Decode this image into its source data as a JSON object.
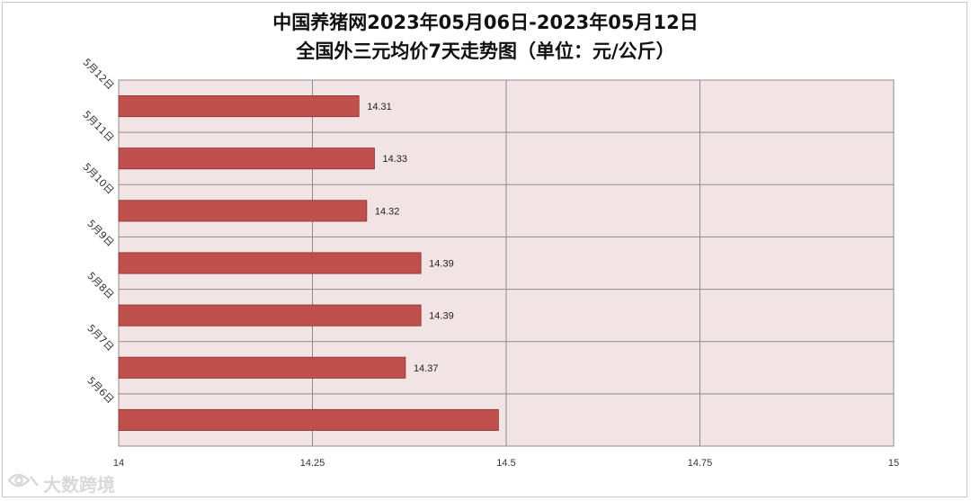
{
  "chart_data": {
    "type": "bar",
    "orientation": "horizontal",
    "title": "中国养猪网2023年05月06日-2023年05月12日",
    "subtitle": "全国外三元均价7天走势图（单位：元/公斤）",
    "categories": [
      "5月12日",
      "5月11日",
      "5月10日",
      "5月9日",
      "5月8日",
      "5月7日",
      "5月6日"
    ],
    "values": [
      14.31,
      14.33,
      14.32,
      14.39,
      14.39,
      14.37,
      14.49
    ],
    "data_labels": [
      "14.31",
      "14.33",
      "14.32",
      "14.39",
      "14.39",
      "14.37",
      ""
    ],
    "xlim": [
      14,
      15
    ],
    "x_ticks": [
      "14",
      "14.25",
      "14.5",
      "14.75",
      "15"
    ],
    "x_tick_values": [
      14,
      14.25,
      14.5,
      14.75,
      15
    ],
    "grid": true,
    "xlabel": "",
    "ylabel": "",
    "colors": {
      "bar": "#c0504d",
      "bar_border": "#8c2f2c",
      "plot_bg": "#f2e4e4",
      "grid": "#8c8c8c"
    }
  },
  "watermark": {
    "icon": "eye-logo-icon",
    "text": "大数跨境"
  }
}
